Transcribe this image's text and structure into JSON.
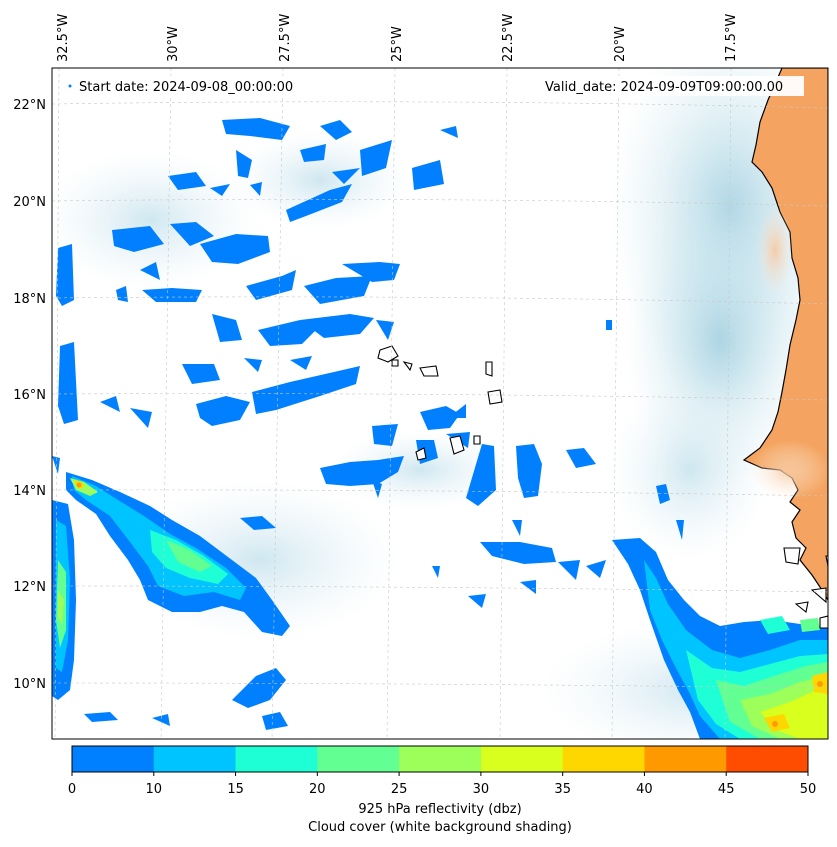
{
  "map": {
    "start_label": "Start date: 2024-09-08_00:00:00",
    "valid_label": "Valid_date: 2024-09-09T09:00:00.00",
    "lon_labels": [
      "32.5°W",
      "30°W",
      "27.5°W",
      "25°W",
      "22.5°W",
      "20°W",
      "17.5°W"
    ],
    "lat_labels": [
      "22°N",
      "20°N",
      "18°N",
      "16°N",
      "14°N",
      "12°N",
      "10°N"
    ]
  },
  "colorbar": {
    "ticks": [
      "0",
      "10",
      "15",
      "20",
      "25",
      "30",
      "35",
      "40",
      "45",
      "50"
    ],
    "colors": [
      "#0080ff",
      "#00c4ff",
      "#1effd6",
      "#62ff92",
      "#9cff5a",
      "#d8ff1e",
      "#ffd700",
      "#ff9900",
      "#ff4d00"
    ],
    "label": "925 hPa reflectivity (dbz)",
    "sublabel": "Cloud cover (white background shading)"
  },
  "colors": {
    "land": "#f4a460",
    "cloud": "#b8dce8",
    "coast": "#000000",
    "grid": "#c8c8c8"
  }
}
